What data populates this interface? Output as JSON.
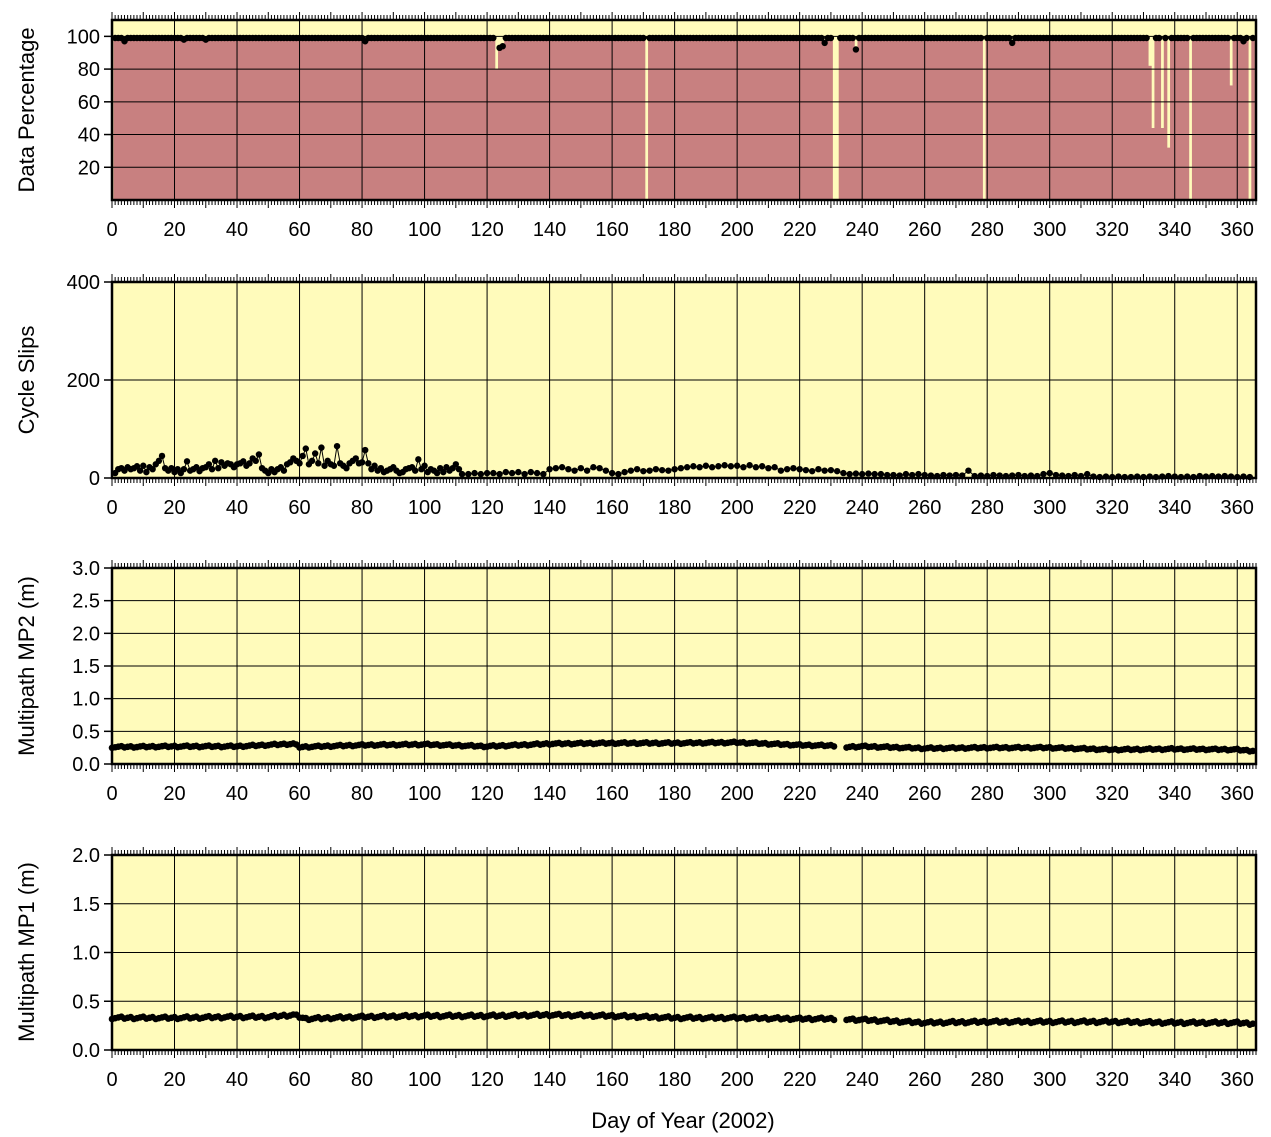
{
  "figure": {
    "xlabel": "Day of Year (2002)",
    "colors": {
      "plot_background": "#fffbbb",
      "data_fill": "#c88080",
      "marker": "#000000",
      "grid": "#000000"
    }
  },
  "chart_data": [
    {
      "id": "data-percentage",
      "type": "scatter",
      "title": "",
      "xlabel": "",
      "ylabel": "Data Percentage",
      "xlim": [
        0,
        366
      ],
      "ylim": [
        0,
        110
      ],
      "xticks": [
        0,
        20,
        40,
        60,
        80,
        100,
        120,
        140,
        160,
        180,
        200,
        220,
        240,
        260,
        280,
        300,
        320,
        340,
        360
      ],
      "yticks": [
        20,
        40,
        60,
        80,
        100
      ],
      "grid": true,
      "bars": true,
      "baseline": 99,
      "values": [
        [
          4,
          97
        ],
        [
          23,
          98
        ],
        [
          30,
          98
        ],
        [
          81,
          97
        ],
        [
          123,
          80
        ],
        [
          124,
          93
        ],
        [
          125,
          94
        ],
        [
          171,
          0
        ],
        [
          228,
          96
        ],
        [
          231,
          0
        ],
        [
          232,
          0
        ],
        [
          238,
          92
        ],
        [
          279,
          0
        ],
        [
          288,
          96
        ],
        [
          332,
          82
        ],
        [
          333,
          44
        ],
        [
          336,
          44
        ],
        [
          338,
          32
        ],
        [
          345,
          0
        ],
        [
          358,
          70
        ],
        [
          362,
          97
        ],
        [
          364,
          0
        ]
      ]
    },
    {
      "id": "cycle-slips",
      "type": "line",
      "title": "",
      "xlabel": "",
      "ylabel": "Cycle Slips",
      "xlim": [
        0,
        366
      ],
      "ylim": [
        0,
        400
      ],
      "xticks": [
        0,
        20,
        40,
        60,
        80,
        100,
        120,
        140,
        160,
        180,
        200,
        220,
        240,
        260,
        280,
        300,
        320,
        340,
        360
      ],
      "yticks": [
        0,
        200,
        400
      ],
      "grid": true,
      "values": [
        [
          1,
          10
        ],
        [
          2,
          18
        ],
        [
          3,
          20
        ],
        [
          4,
          15
        ],
        [
          5,
          22
        ],
        [
          6,
          18
        ],
        [
          7,
          20
        ],
        [
          8,
          24
        ],
        [
          9,
          15
        ],
        [
          10,
          25
        ],
        [
          11,
          12
        ],
        [
          12,
          22
        ],
        [
          13,
          18
        ],
        [
          14,
          28
        ],
        [
          15,
          35
        ],
        [
          16,
          45
        ],
        [
          17,
          20
        ],
        [
          18,
          15
        ],
        [
          19,
          20
        ],
        [
          20,
          12
        ],
        [
          21,
          18
        ],
        [
          22,
          10
        ],
        [
          23,
          18
        ],
        [
          24,
          34
        ],
        [
          25,
          15
        ],
        [
          26,
          18
        ],
        [
          27,
          22
        ],
        [
          28,
          14
        ],
        [
          29,
          20
        ],
        [
          30,
          22
        ],
        [
          31,
          28
        ],
        [
          32,
          18
        ],
        [
          33,
          35
        ],
        [
          34,
          20
        ],
        [
          35,
          32
        ],
        [
          36,
          25
        ],
        [
          37,
          30
        ],
        [
          38,
          28
        ],
        [
          39,
          22
        ],
        [
          40,
          28
        ],
        [
          41,
          30
        ],
        [
          42,
          34
        ],
        [
          43,
          25
        ],
        [
          44,
          30
        ],
        [
          45,
          40
        ],
        [
          46,
          35
        ],
        [
          47,
          48
        ],
        [
          48,
          20
        ],
        [
          49,
          15
        ],
        [
          50,
          10
        ],
        [
          51,
          18
        ],
        [
          52,
          12
        ],
        [
          53,
          18
        ],
        [
          54,
          22
        ],
        [
          55,
          15
        ],
        [
          56,
          28
        ],
        [
          57,
          32
        ],
        [
          58,
          40
        ],
        [
          59,
          35
        ],
        [
          60,
          30
        ],
        [
          61,
          45
        ],
        [
          62,
          60
        ],
        [
          63,
          28
        ],
        [
          64,
          35
        ],
        [
          65,
          50
        ],
        [
          66,
          30
        ],
        [
          67,
          62
        ],
        [
          68,
          25
        ],
        [
          69,
          35
        ],
        [
          70,
          28
        ],
        [
          71,
          25
        ],
        [
          72,
          65
        ],
        [
          73,
          30
        ],
        [
          74,
          25
        ],
        [
          75,
          20
        ],
        [
          76,
          30
        ],
        [
          77,
          35
        ],
        [
          78,
          40
        ],
        [
          79,
          30
        ],
        [
          80,
          32
        ],
        [
          81,
          57
        ],
        [
          82,
          30
        ],
        [
          83,
          18
        ],
        [
          84,
          25
        ],
        [
          85,
          15
        ],
        [
          86,
          20
        ],
        [
          87,
          12
        ],
        [
          88,
          15
        ],
        [
          89,
          18
        ],
        [
          90,
          22
        ],
        [
          91,
          15
        ],
        [
          92,
          10
        ],
        [
          93,
          12
        ],
        [
          94,
          18
        ],
        [
          95,
          20
        ],
        [
          96,
          22
        ],
        [
          97,
          15
        ],
        [
          98,
          38
        ],
        [
          99,
          18
        ],
        [
          100,
          25
        ],
        [
          101,
          12
        ],
        [
          102,
          18
        ],
        [
          103,
          15
        ],
        [
          104,
          10
        ],
        [
          105,
          20
        ],
        [
          106,
          12
        ],
        [
          107,
          22
        ],
        [
          108,
          15
        ],
        [
          109,
          20
        ],
        [
          110,
          28
        ],
        [
          111,
          18
        ],
        [
          112,
          8
        ],
        [
          114,
          8
        ],
        [
          116,
          10
        ],
        [
          118,
          8
        ],
        [
          120,
          10
        ],
        [
          122,
          10
        ],
        [
          124,
          8
        ],
        [
          126,
          12
        ],
        [
          128,
          10
        ],
        [
          130,
          12
        ],
        [
          132,
          8
        ],
        [
          134,
          12
        ],
        [
          136,
          10
        ],
        [
          138,
          8
        ],
        [
          140,
          18
        ],
        [
          142,
          20
        ],
        [
          144,
          22
        ],
        [
          146,
          18
        ],
        [
          148,
          15
        ],
        [
          150,
          20
        ],
        [
          152,
          15
        ],
        [
          154,
          22
        ],
        [
          156,
          20
        ],
        [
          158,
          15
        ],
        [
          160,
          10
        ],
        [
          162,
          8
        ],
        [
          164,
          12
        ],
        [
          166,
          15
        ],
        [
          168,
          18
        ],
        [
          170,
          14
        ],
        [
          172,
          15
        ],
        [
          174,
          18
        ],
        [
          176,
          16
        ],
        [
          178,
          15
        ],
        [
          180,
          18
        ],
        [
          182,
          20
        ],
        [
          184,
          22
        ],
        [
          186,
          24
        ],
        [
          188,
          22
        ],
        [
          190,
          25
        ],
        [
          192,
          22
        ],
        [
          194,
          24
        ],
        [
          196,
          26
        ],
        [
          198,
          24
        ],
        [
          200,
          25
        ],
        [
          202,
          22
        ],
        [
          204,
          26
        ],
        [
          206,
          22
        ],
        [
          208,
          24
        ],
        [
          210,
          20
        ],
        [
          212,
          22
        ],
        [
          214,
          15
        ],
        [
          216,
          18
        ],
        [
          218,
          20
        ],
        [
          220,
          18
        ],
        [
          222,
          16
        ],
        [
          224,
          14
        ],
        [
          226,
          18
        ],
        [
          228,
          15
        ],
        [
          230,
          16
        ],
        [
          232,
          14
        ],
        [
          234,
          10
        ],
        [
          236,
          8
        ],
        [
          238,
          9
        ],
        [
          240,
          8
        ],
        [
          242,
          9
        ],
        [
          244,
          8
        ],
        [
          246,
          8
        ],
        [
          248,
          6
        ],
        [
          250,
          6
        ],
        [
          252,
          5
        ],
        [
          254,
          8
        ],
        [
          256,
          6
        ],
        [
          258,
          8
        ],
        [
          260,
          6
        ],
        [
          262,
          5
        ],
        [
          264,
          4
        ],
        [
          266,
          6
        ],
        [
          268,
          5
        ],
        [
          270,
          6
        ],
        [
          272,
          5
        ],
        [
          274,
          15
        ],
        [
          276,
          4
        ],
        [
          278,
          5
        ],
        [
          280,
          4
        ],
        [
          282,
          6
        ],
        [
          284,
          5
        ],
        [
          286,
          4
        ],
        [
          288,
          5
        ],
        [
          290,
          6
        ],
        [
          292,
          4
        ],
        [
          294,
          5
        ],
        [
          296,
          4
        ],
        [
          298,
          8
        ],
        [
          300,
          10
        ],
        [
          302,
          6
        ],
        [
          304,
          5
        ],
        [
          306,
          4
        ],
        [
          308,
          6
        ],
        [
          310,
          4
        ],
        [
          312,
          8
        ],
        [
          314,
          3
        ],
        [
          316,
          2
        ],
        [
          318,
          3
        ],
        [
          320,
          2
        ],
        [
          322,
          3
        ],
        [
          324,
          2
        ],
        [
          326,
          2
        ],
        [
          328,
          3
        ],
        [
          330,
          2
        ],
        [
          332,
          3
        ],
        [
          334,
          2
        ],
        [
          336,
          3
        ],
        [
          338,
          4
        ],
        [
          340,
          3
        ],
        [
          342,
          2
        ],
        [
          344,
          3
        ],
        [
          346,
          2
        ],
        [
          348,
          4
        ],
        [
          350,
          3
        ],
        [
          352,
          4
        ],
        [
          354,
          3
        ],
        [
          356,
          4
        ],
        [
          358,
          3
        ],
        [
          360,
          2
        ],
        [
          362,
          3
        ],
        [
          364,
          2
        ]
      ]
    },
    {
      "id": "multipath-mp2",
      "type": "line",
      "title": "",
      "xlabel": "",
      "ylabel": "Multipath MP2 (m)",
      "xlim": [
        0,
        366
      ],
      "ylim": [
        0,
        3
      ],
      "xticks": [
        0,
        20,
        40,
        60,
        80,
        100,
        120,
        140,
        160,
        180,
        200,
        220,
        240,
        260,
        280,
        300,
        320,
        340,
        360
      ],
      "yticks": [
        0.0,
        0.5,
        1.0,
        1.5,
        2.0,
        2.5,
        3.0
      ],
      "grid": true,
      "gaps": [
        [
          232,
          234
        ]
      ],
      "values": [
        [
          0,
          0.26
        ],
        [
          20,
          0.27
        ],
        [
          40,
          0.27
        ],
        [
          58,
          0.31
        ],
        [
          60,
          0.26
        ],
        [
          80,
          0.29
        ],
        [
          100,
          0.3
        ],
        [
          120,
          0.27
        ],
        [
          140,
          0.31
        ],
        [
          160,
          0.32
        ],
        [
          180,
          0.32
        ],
        [
          200,
          0.33
        ],
        [
          220,
          0.29
        ],
        [
          232,
          0.28
        ],
        [
          235,
          0.26
        ],
        [
          240,
          0.27
        ],
        [
          260,
          0.24
        ],
        [
          280,
          0.25
        ],
        [
          300,
          0.25
        ],
        [
          320,
          0.22
        ],
        [
          340,
          0.23
        ],
        [
          360,
          0.22
        ],
        [
          365,
          0.2
        ]
      ]
    },
    {
      "id": "multipath-mp1",
      "type": "line",
      "title": "",
      "xlabel": "",
      "ylabel": "Multipath MP1 (m)",
      "xlim": [
        0,
        366
      ],
      "ylim": [
        0,
        2
      ],
      "xticks": [
        0,
        20,
        40,
        60,
        80,
        100,
        120,
        140,
        160,
        180,
        200,
        220,
        240,
        260,
        280,
        300,
        320,
        340,
        360
      ],
      "yticks": [
        0.0,
        0.5,
        1.0,
        1.5,
        2.0
      ],
      "grid": true,
      "gaps": [
        [
          232,
          234
        ]
      ],
      "values": [
        [
          0,
          0.33
        ],
        [
          20,
          0.33
        ],
        [
          40,
          0.34
        ],
        [
          50,
          0.34
        ],
        [
          58,
          0.36
        ],
        [
          62,
          0.32
        ],
        [
          80,
          0.34
        ],
        [
          100,
          0.35
        ],
        [
          120,
          0.35
        ],
        [
          140,
          0.36
        ],
        [
          160,
          0.35
        ],
        [
          180,
          0.33
        ],
        [
          200,
          0.33
        ],
        [
          220,
          0.32
        ],
        [
          232,
          0.32
        ],
        [
          240,
          0.31
        ],
        [
          260,
          0.28
        ],
        [
          280,
          0.29
        ],
        [
          300,
          0.29
        ],
        [
          320,
          0.29
        ],
        [
          340,
          0.28
        ],
        [
          360,
          0.28
        ],
        [
          365,
          0.27
        ]
      ]
    }
  ]
}
